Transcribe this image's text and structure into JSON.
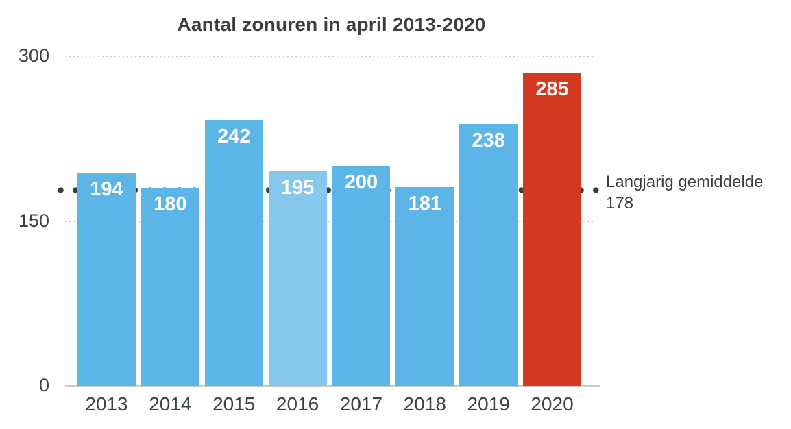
{
  "chart_data": {
    "type": "bar",
    "title": "Aantal zonuren in april 2013-2020",
    "categories": [
      "2013",
      "2014",
      "2015",
      "2016",
      "2017",
      "2018",
      "2019",
      "2020"
    ],
    "values": [
      194,
      180,
      242,
      195,
      200,
      181,
      238,
      285
    ],
    "bar_colors": [
      "#5bb5e6",
      "#5bb5e6",
      "#5bb5e6",
      "#85c8ec",
      "#5bb5e6",
      "#5bb5e6",
      "#5bb5e6",
      "#d23a22"
    ],
    "xlabel": "",
    "ylabel": "",
    "ylim": [
      0,
      300
    ],
    "yticks": [
      0,
      150,
      300
    ],
    "grid": "horizontal-dotted",
    "legend": "none",
    "average_line": {
      "value": 178,
      "label": "Langjarig gemiddelde",
      "value_label": "178",
      "style": "dotted",
      "color": "#3b3b3b"
    }
  },
  "colors": {
    "bar_default": "#5bb5e6",
    "bar_2016": "#85c8ec",
    "bar_2020": "#d23a22",
    "text": "#3d3d3d",
    "gridline": "#c6c6c6",
    "value_label": "#ffffff"
  }
}
